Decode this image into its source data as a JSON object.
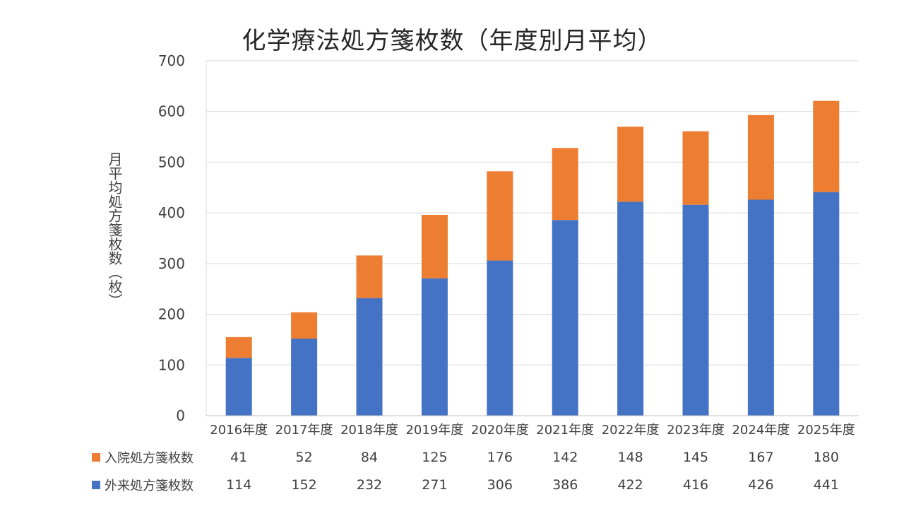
{
  "chart_data": {
    "type": "bar",
    "stacked": true,
    "title": "化学療法処方箋枚数（年度別月平均）",
    "ylabel": "月平均処方箋枚数（枚）",
    "xlabel": "",
    "categories": [
      "2016年度",
      "2017年度",
      "2018年度",
      "2019年度",
      "2020年度",
      "2021年度",
      "2022年度",
      "2023年度",
      "2024年度",
      "2025年度"
    ],
    "ylim": [
      0,
      700
    ],
    "yticks": [
      "0",
      "100",
      "200",
      "300",
      "400",
      "500",
      "600",
      "700"
    ],
    "grid": true,
    "series": [
      {
        "name": "外来処方箋枚数",
        "color": "#4472c4",
        "values": [
          114,
          152,
          232,
          271,
          306,
          386,
          422,
          416,
          426,
          441
        ]
      },
      {
        "name": "入院処方箋枚数",
        "color": "#ed7d31",
        "values": [
          41,
          52,
          84,
          125,
          176,
          142,
          148,
          145,
          167,
          180
        ]
      }
    ],
    "data_table": true
  }
}
